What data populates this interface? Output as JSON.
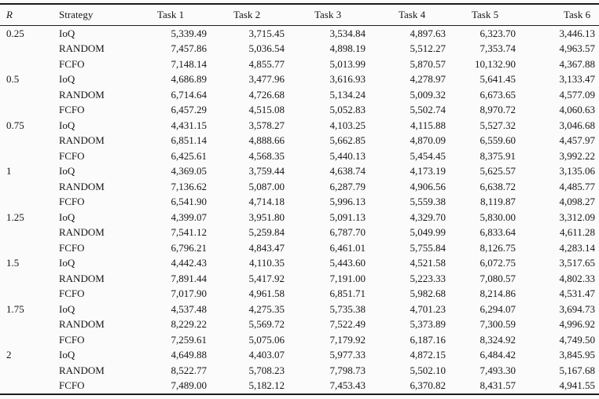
{
  "table": {
    "columns": [
      "R",
      "Strategy",
      "Task 1",
      "Task 2",
      "Task 3",
      "Task 4",
      "Task 5",
      "Task 6"
    ],
    "groups": [
      {
        "r": "0.25",
        "rows": [
          {
            "strategy": "IoQ",
            "values": [
              "5,339.49",
              "3,715.45",
              "3,534.84",
              "4,897.63",
              "6,323.70",
              "3,446.13"
            ]
          },
          {
            "strategy": "RANDOM",
            "values": [
              "7,457.86",
              "5,036.54",
              "4,898.19",
              "5,512.27",
              "7,353.74",
              "4,963.57"
            ]
          },
          {
            "strategy": "FCFO",
            "values": [
              "7,148.14",
              "4,855.77",
              "5,013.99",
              "5,870.57",
              "10,132.90",
              "4,367.88"
            ]
          }
        ]
      },
      {
        "r": "0.5",
        "rows": [
          {
            "strategy": "IoQ",
            "values": [
              "4,686.89",
              "3,477.96",
              "3,616.93",
              "4,278.97",
              "5,641.45",
              "3,133.47"
            ]
          },
          {
            "strategy": "RANDOM",
            "values": [
              "6,714.64",
              "4,726.68",
              "5,134.24",
              "5,009.32",
              "6,673.65",
              "4,577.09"
            ]
          },
          {
            "strategy": "FCFO",
            "values": [
              "6,457.29",
              "4,515.08",
              "5,052.83",
              "5,502.74",
              "8,970.72",
              "4,060.63"
            ]
          }
        ]
      },
      {
        "r": "0.75",
        "rows": [
          {
            "strategy": "IoQ",
            "values": [
              "4,431.15",
              "3,578.27",
              "4,103.25",
              "4,115.88",
              "5,527.32",
              "3,046.68"
            ]
          },
          {
            "strategy": "RANDOM",
            "values": [
              "6,851.14",
              "4,888.66",
              "5,662.85",
              "4,870.09",
              "6,559.60",
              "4,457.97"
            ]
          },
          {
            "strategy": "FCFO",
            "values": [
              "6,425.61",
              "4,568.35",
              "5,440.13",
              "5,454.45",
              "8,375.91",
              "3,992.22"
            ]
          }
        ]
      },
      {
        "r": "1",
        "rows": [
          {
            "strategy": "IoQ",
            "values": [
              "4,369.05",
              "3,759.44",
              "4,638.74",
              "4,173.19",
              "5,625.57",
              "3,135.06"
            ]
          },
          {
            "strategy": "RANDOM",
            "values": [
              "7,136.62",
              "5,087.00",
              "6,287.79",
              "4,906.56",
              "6,638.72",
              "4,485.77"
            ]
          },
          {
            "strategy": "FCFO",
            "values": [
              "6,541.90",
              "4,714.18",
              "5,996.13",
              "5,559.38",
              "8,119.87",
              "4,098.27"
            ]
          }
        ]
      },
      {
        "r": "1.25",
        "rows": [
          {
            "strategy": "IoQ",
            "values": [
              "4,399.07",
              "3,951.80",
              "5,091.13",
              "4,329.70",
              "5,830.00",
              "3,312.09"
            ]
          },
          {
            "strategy": "RANDOM",
            "values": [
              "7,541.12",
              "5,259.84",
              "6,787.70",
              "5,049.99",
              "6,833.64",
              "4,611.28"
            ]
          },
          {
            "strategy": "FCFO",
            "values": [
              "6,796.21",
              "4,843.47",
              "6,461.01",
              "5,755.84",
              "8,126.75",
              "4,283.14"
            ]
          }
        ]
      },
      {
        "r": "1.5",
        "rows": [
          {
            "strategy": "IoQ",
            "values": [
              "4,442.43",
              "4,110.35",
              "5,443.60",
              "4,521.58",
              "6,072.75",
              "3,517.65"
            ]
          },
          {
            "strategy": "RANDOM",
            "values": [
              "7,891.44",
              "5,417.92",
              "7,191.00",
              "5,223.33",
              "7,080.57",
              "4,802.33"
            ]
          },
          {
            "strategy": "FCFO",
            "values": [
              "7,017.90",
              "4,961.58",
              "6,851.71",
              "5,982.68",
              "8,214.86",
              "4,531.47"
            ]
          }
        ]
      },
      {
        "r": "1.75",
        "rows": [
          {
            "strategy": "IoQ",
            "values": [
              "4,537.48",
              "4,275.35",
              "5,735.38",
              "4,701.23",
              "6,294.07",
              "3,694.73"
            ]
          },
          {
            "strategy": "RANDOM",
            "values": [
              "8,229.22",
              "5,569.72",
              "7,522.49",
              "5,373.89",
              "7,300.59",
              "4,996.92"
            ]
          },
          {
            "strategy": "FCFO",
            "values": [
              "7,259.61",
              "5,075.06",
              "7,179.92",
              "6,187.16",
              "8,324.92",
              "4,749.50"
            ]
          }
        ]
      },
      {
        "r": "2",
        "rows": [
          {
            "strategy": "IoQ",
            "values": [
              "4,649.88",
              "4,403.07",
              "5,977.33",
              "4,872.15",
              "6,484.42",
              "3,845.95"
            ]
          },
          {
            "strategy": "RANDOM",
            "values": [
              "8,522.77",
              "5,708.23",
              "7,798.73",
              "5,502.10",
              "7,493.30",
              "5,167.68"
            ]
          },
          {
            "strategy": "FCFO",
            "values": [
              "7,489.00",
              "5,182.12",
              "7,453.43",
              "6,370.82",
              "8,431.57",
              "4,941.55"
            ]
          }
        ]
      }
    ]
  }
}
